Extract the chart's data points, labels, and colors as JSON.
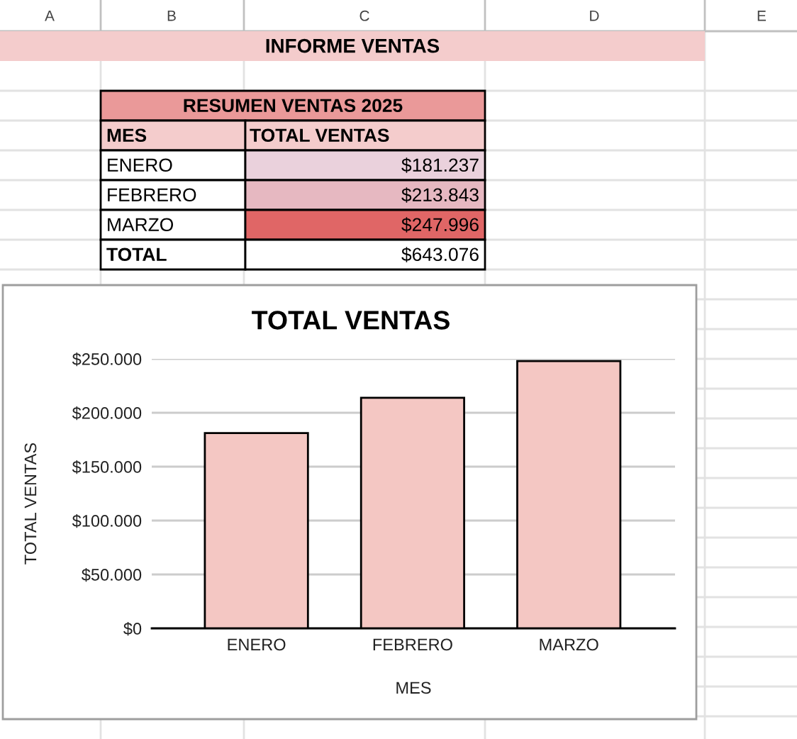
{
  "chart_data": {
    "type": "bar",
    "title": "TOTAL VENTAS",
    "xlabel": "MES",
    "ylabel": "TOTAL VENTAS",
    "categories": [
      "ENERO",
      "FEBRERO",
      "MARZO"
    ],
    "values": [
      181237,
      213843,
      247996
    ],
    "color": "#f4c7c3",
    "ylim": [
      0,
      250000
    ],
    "yticks": [
      {
        "value": 0,
        "label": "$0"
      },
      {
        "value": 50000,
        "label": "$50.000"
      },
      {
        "value": 100000,
        "label": "$100.000"
      },
      {
        "value": 150000,
        "label": "$150.000"
      },
      {
        "value": 200000,
        "label": "$200.000"
      },
      {
        "value": 250000,
        "label": "$250.000"
      }
    ],
    "grid": "y",
    "annotations": [
      "INFORME VENTAS",
      "RESUMEN VENTAS 2025",
      "MES",
      "TOTAL VENTAS",
      "$181.237",
      "$213.843",
      "$247.996",
      "TOTAL",
      "$643.076",
      "A",
      "B",
      "C",
      "D",
      "E"
    ]
  }
}
